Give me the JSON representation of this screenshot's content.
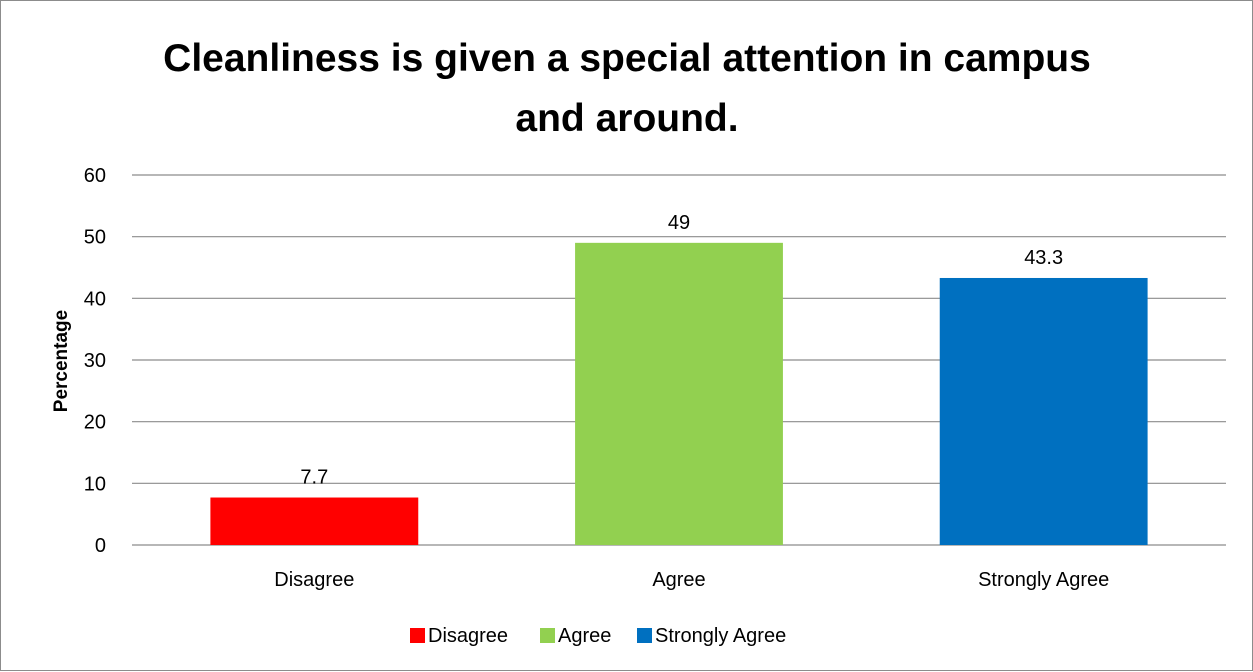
{
  "chart_data": {
    "type": "bar",
    "title": [
      "Cleanliness is given a special attention in campus",
      "and around."
    ],
    "ylabel": "Percentage",
    "xlabel": "",
    "categories": [
      "Disagree",
      "Agree",
      "Strongly Agree"
    ],
    "values": [
      7.7,
      49,
      43.3
    ],
    "data_labels": [
      "7.7",
      "49",
      "43.3"
    ],
    "colors": [
      "#ff0000",
      "#92d050",
      "#0070c0"
    ],
    "ylim": [
      0,
      60
    ],
    "yticks": [
      0,
      10,
      20,
      30,
      40,
      50,
      60
    ],
    "grid": true,
    "legend": {
      "position": "bottom",
      "entries": [
        "Disagree",
        "Agree",
        "Strongly Agree"
      ]
    }
  }
}
